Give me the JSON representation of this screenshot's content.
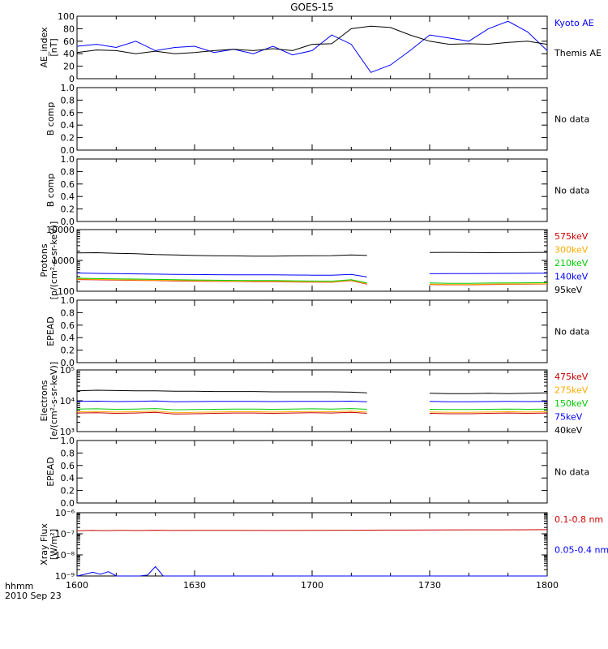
{
  "title": "GOES-15",
  "footer": {
    "time_label": "hhmm",
    "date_label": "2010 Sep 23"
  },
  "x_ticks": [
    "1600",
    "1630",
    "1700",
    "1730",
    "1800"
  ],
  "colors": {
    "black": "#000000",
    "blue": "#0000ff",
    "red": "#cc0000",
    "orange": "#ffaa00",
    "green": "#00cc00"
  },
  "chart_data": [
    {
      "type": "line",
      "ylabel": [
        "AE_index",
        "[nT]"
      ],
      "yscale": "linear",
      "ylim": [
        0,
        100
      ],
      "yticks": [
        "0",
        "20",
        "40",
        "60",
        "80",
        "100"
      ],
      "x": [
        1600,
        1605,
        1610,
        1615,
        1620,
        1625,
        1630,
        1635,
        1640,
        1645,
        1650,
        1655,
        1700,
        1705,
        1710,
        1715,
        1720,
        1725,
        1730,
        1735,
        1740,
        1745,
        1750,
        1755,
        1800
      ],
      "series": [
        {
          "name": "Kyoto AE",
          "color": "#0000ff",
          "values": [
            52,
            55,
            50,
            60,
            45,
            50,
            52,
            42,
            47,
            40,
            52,
            38,
            45,
            70,
            55,
            10,
            22,
            45,
            70,
            65,
            60,
            80,
            92,
            75,
            45
          ]
        },
        {
          "name": "Themis AE",
          "color": "#000000",
          "values": [
            42,
            46,
            45,
            40,
            44,
            40,
            42,
            45,
            47,
            45,
            48,
            45,
            55,
            56,
            80,
            84,
            82,
            70,
            60,
            55,
            56,
            55,
            58,
            60,
            55
          ]
        }
      ],
      "legend": [
        "Kyoto AE",
        "Themis AE"
      ]
    },
    {
      "type": "line",
      "ylabel": [
        "B comp"
      ],
      "yscale": "linear",
      "ylim": [
        0,
        1
      ],
      "yticks": [
        "0.0",
        "0.2",
        "0.4",
        "0.6",
        "0.8",
        "1.0"
      ],
      "series": [],
      "note": "No data"
    },
    {
      "type": "line",
      "ylabel": [
        "B comp"
      ],
      "yscale": "linear",
      "ylim": [
        0,
        1
      ],
      "yticks": [
        "0.0",
        "0.2",
        "0.4",
        "0.6",
        "0.8",
        "1.0"
      ],
      "series": [],
      "note": "No data"
    },
    {
      "type": "line",
      "ylabel": [
        "Protons",
        "[p/(cm²-s-sr-keV)]"
      ],
      "yscale": "log",
      "ylim": [
        100,
        10000
      ],
      "yticks": [
        "100",
        "1000",
        "10000"
      ],
      "x": [
        1600,
        1605,
        1610,
        1615,
        1620,
        1625,
        1630,
        1635,
        1640,
        1645,
        1650,
        1655,
        1700,
        1705,
        1710,
        1714,
        1730,
        1735,
        1740,
        1745,
        1750,
        1755,
        1800
      ],
      "series": [
        {
          "name": "575keV",
          "color": "#cc0000",
          "values": [
            240,
            235,
            230,
            225,
            222,
            215,
            212,
            210,
            208,
            205,
            205,
            200,
            198,
            196,
            220,
            170,
            165,
            162,
            162,
            165,
            168,
            170,
            172
          ]
        },
        {
          "name": "300keV",
          "color": "#ffaa00",
          "values": [
            248,
            242,
            238,
            232,
            228,
            222,
            218,
            215,
            212,
            210,
            210,
            205,
            202,
            200,
            225,
            175,
            170,
            166,
            166,
            170,
            172,
            174,
            176
          ]
        },
        {
          "name": "210keV",
          "color": "#00cc00",
          "values": [
            265,
            258,
            252,
            248,
            242,
            236,
            232,
            228,
            225,
            222,
            222,
            218,
            214,
            212,
            238,
            185,
            185,
            180,
            180,
            184,
            186,
            188,
            190
          ]
        },
        {
          "name": "140keV",
          "color": "#0000ff",
          "values": [
            390,
            380,
            372,
            365,
            360,
            352,
            348,
            345,
            342,
            340,
            340,
            336,
            332,
            330,
            350,
            290,
            370,
            372,
            375,
            378,
            380,
            382,
            385
          ]
        },
        {
          "name": "95keV",
          "color": "#000000",
          "values": [
            1750,
            1780,
            1700,
            1650,
            1550,
            1500,
            1450,
            1420,
            1400,
            1380,
            1380,
            1400,
            1420,
            1430,
            1500,
            1450,
            1800,
            1820,
            1800,
            1780,
            1790,
            1800,
            1820
          ]
        }
      ],
      "legend": [
        "575keV",
        "300keV",
        "210keV",
        "140keV",
        "95keV"
      ]
    },
    {
      "type": "line",
      "ylabel": [
        "EPEAD"
      ],
      "yscale": "linear",
      "ylim": [
        0,
        1
      ],
      "yticks": [
        "0.0",
        "0.2",
        "0.4",
        "0.6",
        "0.8",
        "1.0"
      ],
      "series": [],
      "note": "No data"
    },
    {
      "type": "line",
      "ylabel": [
        "Electrons",
        "[e/(cm²-s-sr-keV)]"
      ],
      "yscale": "log",
      "ylim": [
        1000,
        100000
      ],
      "yticks": [
        "10³",
        "10⁴",
        "10⁵"
      ],
      "x": [
        1600,
        1605,
        1610,
        1615,
        1620,
        1625,
        1630,
        1635,
        1640,
        1645,
        1650,
        1655,
        1700,
        1705,
        1710,
        1714,
        1730,
        1735,
        1740,
        1745,
        1750,
        1755,
        1800
      ],
      "series": [
        {
          "name": "475keV",
          "color": "#cc0000",
          "values": [
            4000,
            4100,
            3900,
            4000,
            4200,
            3700,
            3800,
            3900,
            4000,
            4000,
            3900,
            4000,
            4100,
            4000,
            4200,
            3900,
            3900,
            3800,
            3800,
            3900,
            4000,
            3900,
            4000
          ]
        },
        {
          "name": "275keV",
          "color": "#ffaa00",
          "values": [
            4400,
            4500,
            4300,
            4400,
            4600,
            4100,
            4200,
            4300,
            4400,
            4400,
            4300,
            4400,
            4500,
            4400,
            4600,
            4300,
            4300,
            4200,
            4200,
            4300,
            4400,
            4300,
            4400
          ]
        },
        {
          "name": "150keV",
          "color": "#00cc00",
          "values": [
            5400,
            5500,
            5300,
            5400,
            5600,
            5100,
            5200,
            5300,
            5400,
            5400,
            5300,
            5400,
            5500,
            5400,
            5600,
            5300,
            5300,
            5200,
            5200,
            5300,
            5400,
            5300,
            5400
          ]
        },
        {
          "name": "75keV",
          "color": "#0000ff",
          "values": [
            9500,
            9700,
            9400,
            9500,
            9800,
            9300,
            9400,
            9500,
            9600,
            9600,
            9400,
            9500,
            9600,
            9500,
            9700,
            9300,
            9500,
            9300,
            9300,
            9400,
            9500,
            9400,
            9500
          ]
        },
        {
          "name": "40keV",
          "color": "#000000",
          "values": [
            21000,
            22000,
            21500,
            21000,
            21000,
            20500,
            20500,
            20000,
            20000,
            20000,
            19500,
            19500,
            19500,
            19500,
            19000,
            18000,
            17500,
            17000,
            17000,
            17500,
            17000,
            17500,
            18000
          ]
        }
      ],
      "legend": [
        "475keV",
        "275keV",
        "150keV",
        "75keV",
        "40keV"
      ]
    },
    {
      "type": "line",
      "ylabel": [
        "EPEAD"
      ],
      "yscale": "linear",
      "ylim": [
        0,
        1
      ],
      "yticks": [
        "0.0",
        "0.2",
        "0.4",
        "0.6",
        "0.8",
        "1.0"
      ],
      "series": [],
      "note": "No data"
    },
    {
      "type": "line",
      "ylabel": [
        "Xray Flux",
        "[W/m²]"
      ],
      "yscale": "log",
      "ylim": [
        1e-09,
        1e-06
      ],
      "yticks": [
        "10⁻⁹",
        "10⁻⁸",
        "10⁻⁷",
        "10⁻⁶"
      ],
      "x": [
        1600,
        1602,
        1604,
        1606,
        1608,
        1610,
        1612,
        1614,
        1616,
        1618,
        1620,
        1622,
        1624,
        1630,
        1640,
        1650,
        1700,
        1710,
        1720,
        1730,
        1740,
        1750,
        1800
      ],
      "series": [
        {
          "name": "0.1-0.8 nm",
          "color": "#cc0000",
          "values": [
            1.4e-07,
            1.42e-07,
            1.45e-07,
            1.43e-07,
            1.42e-07,
            1.45e-07,
            1.46e-07,
            1.44e-07,
            1.42e-07,
            1.45e-07,
            1.47e-07,
            1.45e-07,
            1.44e-07,
            1.46e-07,
            1.45e-07,
            1.44e-07,
            1.46e-07,
            1.48e-07,
            1.5e-07,
            1.52e-07,
            1.55e-07,
            1.55e-07,
            1.57e-07
          ]
        },
        {
          "name": "0.05-0.4 nm",
          "color": "#0000ff",
          "values": [
            1e-09,
            1.2e-09,
            1.5e-09,
            1.2e-09,
            1.6e-09,
            1e-09,
            1e-09,
            1e-09,
            1e-09,
            1.1e-09,
            2.8e-09,
            1e-09,
            1e-09,
            1e-09,
            1e-09,
            1e-09,
            1e-09,
            1e-09,
            1e-09,
            1e-09,
            1e-09,
            1e-09,
            1e-09
          ]
        }
      ],
      "legend": [
        "0.1-0.8 nm",
        "0.05-0.4 nm"
      ]
    }
  ]
}
